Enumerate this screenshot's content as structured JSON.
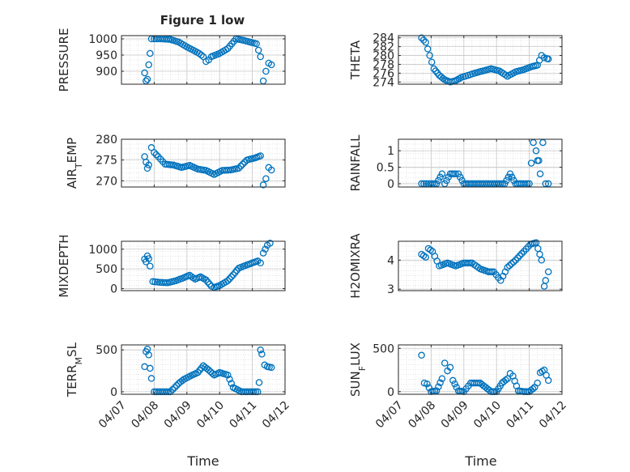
{
  "figure": {
    "title": "Figure 1 low",
    "xlabel": "Time",
    "date_ticks": [
      "04/07",
      "04/08",
      "04/09",
      "04/10",
      "04/11",
      "04/12"
    ]
  },
  "colors": {
    "marker": "#0072BD",
    "axis": "#262626",
    "grid": "#d4d4d4"
  },
  "chart_data": [
    {
      "type": "scatter",
      "ylabel": "PRESSURE",
      "title": "Figure 1 low",
      "xlim": [
        "2023-04-07 00:00",
        "2023-04-12 00:00"
      ],
      "ylim": [
        860,
        1010
      ],
      "yticks": [
        "900",
        "950",
        "1000"
      ],
      "ytick_values": [
        900,
        950,
        1000
      ],
      "x": [
        "04/07 17:00",
        "04/07 18:00",
        "04/07 19:00",
        "04/07 20:00",
        "04/07 21:00",
        "04/07 22:00",
        "04/08 00:00",
        "04/08 06:00",
        "04/08 12:00",
        "04/08 18:00",
        "04/09 00:00",
        "04/09 06:00",
        "04/09 09:00",
        "04/09 12:00",
        "04/09 14:00",
        "04/09 16:00",
        "04/09 18:00",
        "04/09 21:00",
        "04/10 00:00",
        "04/10 06:00",
        "04/10 12:00",
        "04/10 18:00",
        "04/11 00:00",
        "04/11 03:00",
        "04/11 06:00",
        "04/11 08:00",
        "04/11 10:00",
        "04/11 12:00",
        "04/11 14:00"
      ],
      "y": [
        895,
        870,
        875,
        920,
        955,
        1000,
        1000,
        1000,
        998,
        990,
        975,
        962,
        955,
        945,
        930,
        935,
        945,
        950,
        955,
        970,
        1000,
        995,
        988,
        985,
        945,
        870,
        900,
        925,
        920
      ]
    },
    {
      "type": "scatter",
      "ylabel": "THETA",
      "xlim": [
        "2023-04-07 00:00",
        "2023-04-12 00:00"
      ],
      "ylim": [
        273.5,
        284.5
      ],
      "yticks": [
        "274",
        "276",
        "278",
        "280",
        "282",
        "284"
      ],
      "ytick_values": [
        274,
        276,
        278,
        280,
        282,
        284
      ],
      "x": [
        "04/07 17:00",
        "04/07 20:00",
        "04/07 23:00",
        "04/08 02:00",
        "04/08 06:00",
        "04/08 10:00",
        "04/08 14:00",
        "04/08 18:00",
        "04/08 22:00",
        "04/09 03:00",
        "04/09 08:00",
        "04/09 14:00",
        "04/09 20:00",
        "04/10 02:00",
        "04/10 08:00",
        "04/10 14:00",
        "04/10 20:00",
        "04/11 02:00",
        "04/11 06:00",
        "04/11 09:00",
        "04/11 11:00",
        "04/11 13:00",
        "04/11 14:00"
      ],
      "y": [
        284,
        283,
        280,
        277,
        275.5,
        274.5,
        274,
        274.3,
        275,
        275.5,
        276,
        276.5,
        277,
        276.5,
        275.3,
        276.3,
        276.8,
        277.5,
        277.8,
        280,
        279.5,
        279.3,
        279.2
      ]
    },
    {
      "type": "scatter",
      "ylabel": "AIR_TEMP",
      "xlim": [
        "2023-04-07 00:00",
        "2023-04-12 00:00"
      ],
      "ylim": [
        268.5,
        280
      ],
      "yticks": [
        "270",
        "275",
        "280"
      ],
      "ytick_values": [
        270,
        275,
        280
      ],
      "x": [
        "04/07 17:00",
        "04/07 18:00",
        "04/07 19:00",
        "04/07 20:00",
        "04/07 22:00",
        "04/08 00:00",
        "04/08 03:00",
        "04/08 08:00",
        "04/08 14:00",
        "04/08 20:00",
        "04/09 02:00",
        "04/09 08:00",
        "04/09 14:00",
        "04/09 20:00",
        "04/10 02:00",
        "04/10 08:00",
        "04/10 14:00",
        "04/10 20:00",
        "04/11 02:00",
        "04/11 06:00",
        "04/11 08:00",
        "04/11 10:00",
        "04/11 12:00",
        "04/11 14:00"
      ],
      "y": [
        275.8,
        274.5,
        273,
        273.8,
        278,
        276.8,
        275.8,
        274,
        273.8,
        273.2,
        273.7,
        272.8,
        272.5,
        271.5,
        272.5,
        272.6,
        273,
        275,
        275.5,
        276,
        269,
        270.5,
        273.2,
        272.6
      ]
    },
    {
      "type": "scatter",
      "ylabel": "RAINFALL",
      "xlim": [
        "2023-04-07 00:00",
        "2023-04-12 00:00"
      ],
      "ylim": [
        -0.1,
        1.35
      ],
      "yticks": [
        "0",
        "0.5",
        "1"
      ],
      "ytick_values": [
        0,
        0.5,
        1
      ],
      "x": [
        "04/07 17:00",
        "04/07 22:00",
        "04/08 04:00",
        "04/08 08:00",
        "04/08 10:00",
        "04/08 14:00",
        "04/08 18:00",
        "04/08 20:00",
        "04/09 00:00",
        "04/09 06:00",
        "04/09 12:00",
        "04/09 18:00",
        "04/10 00:00",
        "04/10 06:00",
        "04/10 10:00",
        "04/10 14:00",
        "04/10 18:00",
        "04/11 00:00",
        "04/11 03:00",
        "04/11 05:00",
        "04/11 06:00",
        "04/11 07:00",
        "04/11 08:00",
        "04/11 10:00",
        "04/11 12:00",
        "04/11 14:00"
      ],
      "y": [
        0,
        0,
        0,
        0.3,
        0,
        0.3,
        0.3,
        0.3,
        0,
        0,
        0,
        0,
        0,
        0,
        0.3,
        0,
        0,
        0,
        1.25,
        1.0,
        0.7,
        0.7,
        0.3,
        1.25,
        0,
        0
      ]
    },
    {
      "type": "scatter",
      "ylabel": "MIXDEPTH",
      "xlim": [
        "2023-04-07 00:00",
        "2023-04-12 00:00"
      ],
      "ylim": [
        -50,
        1200
      ],
      "yticks": [
        "0",
        "500",
        "1000"
      ],
      "ytick_values": [
        0,
        500,
        1000
      ],
      "x": [
        "04/07 17:00",
        "04/07 18:00",
        "04/07 19:00",
        "04/07 20:00",
        "04/07 21:00",
        "04/07 23:00",
        "04/08 04:00",
        "04/08 10:00",
        "04/08 16:00",
        "04/08 22:00",
        "04/09 02:00",
        "04/09 06:00",
        "04/09 10:00",
        "04/09 14:00",
        "04/09 18:00",
        "04/09 20:00",
        "04/10 00:00",
        "04/10 06:00",
        "04/10 10:00",
        "04/10 14:00",
        "04/10 20:00",
        "04/11 00:00",
        "04/11 04:00",
        "04/11 06:00",
        "04/11 08:00",
        "04/11 11:00",
        "04/11 13:00"
      ],
      "y": [
        750,
        680,
        830,
        760,
        570,
        180,
        160,
        150,
        200,
        280,
        340,
        240,
        300,
        220,
        60,
        30,
        80,
        200,
        350,
        520,
        600,
        650,
        700,
        650,
        900,
        1100,
        1150
      ]
    },
    {
      "type": "scatter",
      "ylabel": "H2OMIXRA",
      "xlim": [
        "2023-04-07 00:00",
        "2023-04-12 00:00"
      ],
      "ylim": [
        2.95,
        4.65
      ],
      "yticks": [
        "3",
        "4"
      ],
      "ytick_values": [
        3,
        4
      ],
      "x": [
        "04/07 17:00",
        "04/07 20:00",
        "04/07 22:00",
        "04/08 01:00",
        "04/08 06:00",
        "04/08 12:00",
        "04/08 18:00",
        "04/09 00:00",
        "04/09 06:00",
        "04/09 12:00",
        "04/09 18:00",
        "04/09 22:00",
        "04/10 03:00",
        "04/10 08:00",
        "04/10 14:00",
        "04/10 20:00",
        "04/11 01:00",
        "04/11 05:00",
        "04/11 09:00",
        "04/11 11:00",
        "04/11 12:00",
        "04/11 14:00"
      ],
      "y": [
        4.2,
        4.1,
        4.4,
        4.3,
        3.8,
        3.9,
        3.8,
        3.9,
        3.9,
        3.7,
        3.6,
        3.6,
        3.3,
        3.75,
        4.0,
        4.3,
        4.55,
        4.6,
        4.0,
        3.1,
        3.3,
        3.6
      ]
    },
    {
      "type": "scatter",
      "ylabel": "TERR_MSL",
      "xlim": [
        "2023-04-07 00:00",
        "2023-04-12 00:00"
      ],
      "ylim": [
        -30,
        560
      ],
      "yticks": [
        "0",
        "500"
      ],
      "ytick_values": [
        0,
        500
      ],
      "x": [
        "04/07 17:00",
        "04/07 18:00",
        "04/07 19:00",
        "04/07 20:00",
        "04/07 21:00",
        "04/07 22:00",
        "04/08 00:00",
        "04/08 06:00",
        "04/08 12:00",
        "04/08 18:00",
        "04/08 22:00",
        "04/09 04:00",
        "04/09 08:00",
        "04/09 12:00",
        "04/09 16:00",
        "04/09 20:00",
        "04/10 00:00",
        "04/10 06:00",
        "04/10 10:00",
        "04/10 16:00",
        "04/10 22:00",
        "04/11 04:00",
        "04/11 05:00",
        "04/11 06:00",
        "04/11 07:00",
        "04/11 09:00",
        "04/11 11:00",
        "04/11 14:00"
      ],
      "y": [
        300,
        480,
        510,
        440,
        280,
        160,
        0,
        0,
        0,
        100,
        150,
        200,
        230,
        310,
        260,
        200,
        230,
        200,
        50,
        0,
        0,
        0,
        110,
        500,
        450,
        320,
        300,
        290
      ]
    },
    {
      "type": "scatter",
      "ylabel": "SUN_FLUX",
      "xlim": [
        "2023-04-07 00:00",
        "2023-04-12 00:00"
      ],
      "ylim": [
        -30,
        540
      ],
      "yticks": [
        "0",
        "500"
      ],
      "ytick_values": [
        0,
        500
      ],
      "x": [
        "04/07 17:00",
        "04/07 19:00",
        "04/07 21:00",
        "04/08 00:00",
        "04/08 04:00",
        "04/08 08:00",
        "04/08 10:00",
        "04/08 12:00",
        "04/08 14:00",
        "04/08 16:00",
        "04/08 20:00",
        "04/09 00:00",
        "04/09 05:00",
        "04/09 12:00",
        "04/09 16:00",
        "04/09 20:00",
        "04/10 00:00",
        "04/10 04:00",
        "04/10 08:00",
        "04/10 10:00",
        "04/10 12:00",
        "04/10 16:00",
        "04/10 20:00",
        "04/11 00:00",
        "04/11 04:00",
        "04/11 06:00",
        "04/11 08:00",
        "04/11 11:00",
        "04/11 14:00"
      ],
      "y": [
        420,
        100,
        90,
        0,
        10,
        150,
        330,
        240,
        280,
        130,
        10,
        0,
        100,
        100,
        50,
        0,
        0,
        100,
        150,
        210,
        180,
        10,
        0,
        0,
        50,
        100,
        220,
        250,
        130
      ]
    }
  ]
}
